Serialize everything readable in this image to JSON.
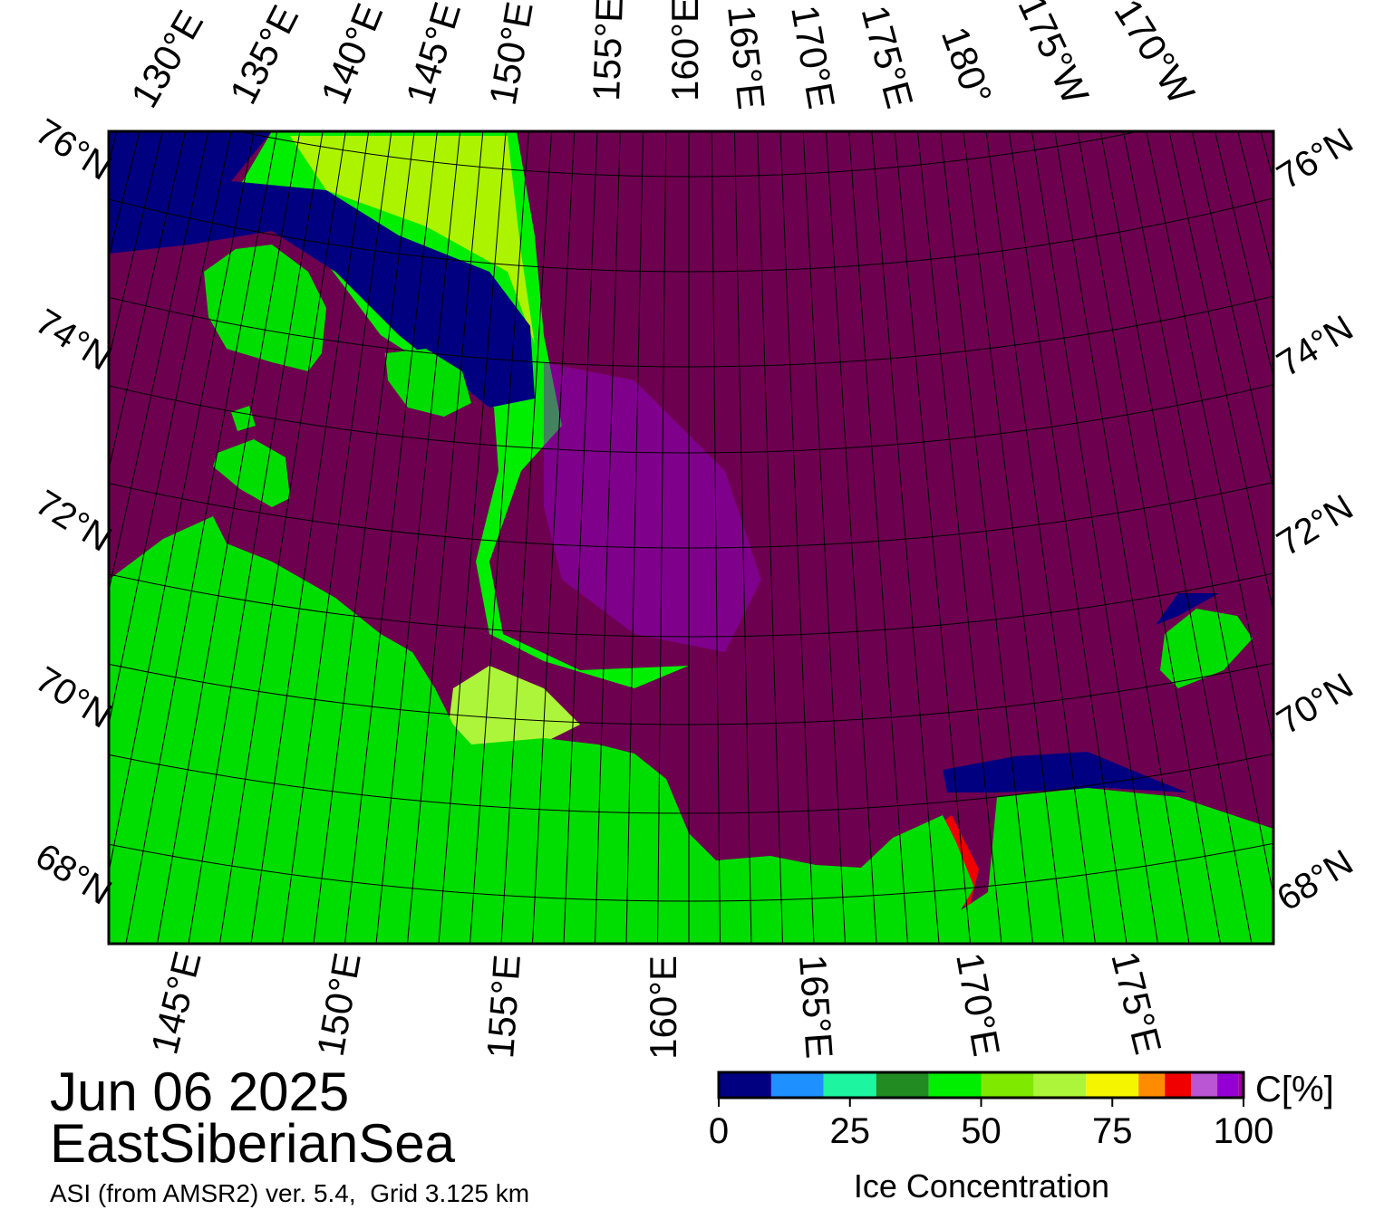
{
  "map": {
    "date": "Jun 06 2025",
    "region": "EastSiberianSea",
    "caption": "ASI (from AMSR2) ver. 5.4,  Grid 3.125 km",
    "top_longitude_labels": [
      "130°E",
      "135°E",
      "140°E",
      "145°E",
      "150°E",
      "155°E",
      "160°E",
      "165°E",
      "170°E",
      "175°E",
      "180°",
      "175°W",
      "170°W"
    ],
    "left_latitude_labels": [
      "76°N",
      "74°N",
      "72°N",
      "70°N",
      "68°N"
    ],
    "right_latitude_labels": [
      "76°N",
      "74°N",
      "72°N",
      "70°N",
      "68°N"
    ],
    "bottom_longitude_labels": [
      "145°E",
      "150°E",
      "155°E",
      "160°E",
      "165°E",
      "170°E",
      "175°E"
    ]
  },
  "colorbar": {
    "label": "Ice Concentration",
    "unit": "C[%]",
    "bounds": [
      0,
      10,
      20,
      30,
      40,
      50,
      60,
      70,
      80,
      85,
      90,
      95,
      99,
      100
    ],
    "colors": [
      "#000080",
      "#1e90ff",
      "#1ef5a0",
      "#228b22",
      "#00ee00",
      "#7fea00",
      "#adf53a",
      "#f5f500",
      "#ff8c00",
      "#f00000",
      "#ba55d3",
      "#9400d3",
      "#a000a0"
    ],
    "ticks": [
      0,
      25,
      50,
      75,
      100
    ]
  }
}
